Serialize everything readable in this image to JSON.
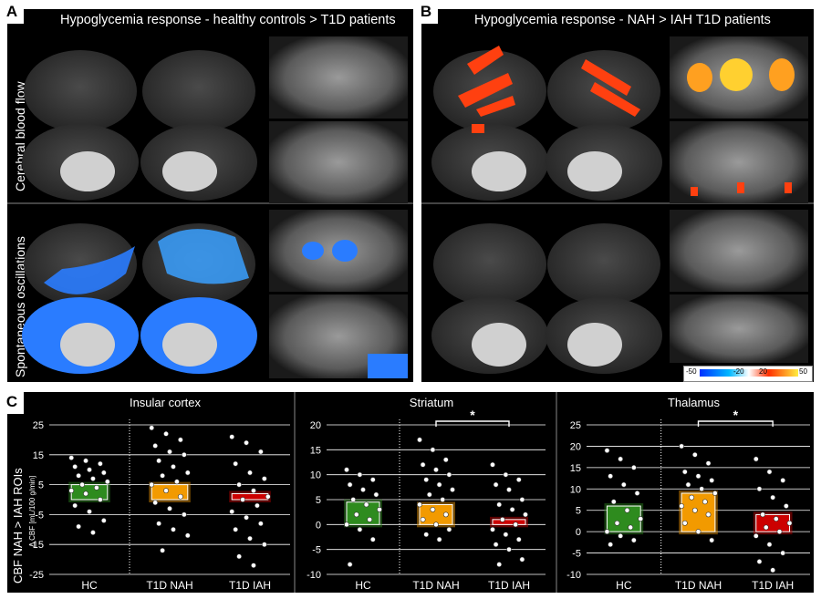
{
  "panel_a": {
    "letter": "A",
    "title": "Hypoglycemia response - healthy controls > T1D patients"
  },
  "panel_b": {
    "letter": "B",
    "title": "Hypoglycemia response - NAH > IAH T1D patients"
  },
  "panel_c": {
    "letter": "C"
  },
  "row_labels": {
    "top": "Cerebral blood flow",
    "bottom": "Spontaneous oscillations"
  },
  "colorbar": {
    "ticks": [
      "-50",
      "-20",
      "20",
      "50"
    ]
  },
  "colors": {
    "hc": "#2e8b1e",
    "nah": "#f29a00",
    "iah": "#cc0000",
    "neg": "#2a7cff",
    "pos": "#ff4010"
  },
  "chart_data": [
    {
      "type": "bar",
      "title": "Insular cortex",
      "ylabel": "CBF NAH > IAH ROIs",
      "ylabel_units": "Δ CBF [mL/100 g/min]",
      "categories": [
        "HC",
        "T1D NAH",
        "T1D IAH"
      ],
      "values": [
        5,
        5,
        2
      ],
      "ylim": [
        -25,
        25
      ],
      "yticks": [
        "25",
        "15",
        "5",
        "-5",
        "-15",
        "-25"
      ],
      "ytick_values": [
        25,
        15,
        5,
        -5,
        -15,
        -25
      ],
      "significance": null,
      "points": [
        [
          14,
          13,
          12,
          11,
          10,
          9,
          8,
          7,
          6,
          5,
          4,
          3,
          2,
          0,
          -2,
          -4,
          -7,
          -9,
          -11
        ],
        [
          24,
          22,
          20,
          18,
          16,
          15,
          13,
          11,
          9,
          8,
          6,
          5,
          3,
          1,
          -1,
          -3,
          -5,
          -8,
          -10,
          -12,
          -17
        ],
        [
          21,
          19,
          16,
          12,
          9,
          7,
          5,
          3,
          1,
          0,
          -2,
          -4,
          -6,
          -8,
          -10,
          -13,
          -15,
          -19,
          -22
        ]
      ]
    },
    {
      "type": "bar",
      "title": "Striatum",
      "categories": [
        "HC",
        "T1D NAH",
        "T1D IAH"
      ],
      "values": [
        4.5,
        4,
        1
      ],
      "ylim": [
        -10,
        20
      ],
      "yticks": [
        "20",
        "15",
        "10",
        "5",
        "0",
        "-5",
        "-10"
      ],
      "ytick_values": [
        20,
        15,
        10,
        5,
        0,
        -5,
        -10
      ],
      "significance": {
        "from": 1,
        "to": 2,
        "label": "*"
      },
      "points": [
        [
          11,
          10,
          9,
          8,
          7,
          6,
          5,
          4,
          3,
          2,
          1,
          0,
          -1,
          -3,
          -8
        ],
        [
          17,
          15,
          13,
          12,
          11,
          10,
          9,
          8,
          7,
          6,
          5,
          4,
          3,
          2,
          1,
          0,
          -1,
          -2,
          -3
        ],
        [
          12,
          10,
          9,
          8,
          7,
          5,
          4,
          3,
          2,
          1,
          0,
          -1,
          -2,
          -3,
          -4,
          -5,
          -7,
          -8
        ]
      ]
    },
    {
      "type": "bar",
      "title": "Thalamus",
      "categories": [
        "HC",
        "T1D NAH",
        "T1D IAH"
      ],
      "values": [
        6,
        9,
        4
      ],
      "ylim": [
        -10,
        25
      ],
      "yticks": [
        "25",
        "20",
        "15",
        "10",
        "5",
        "0",
        "-5",
        "-10"
      ],
      "ytick_values": [
        25,
        20,
        15,
        10,
        5,
        0,
        -5,
        -10
      ],
      "significance": {
        "from": 1,
        "to": 2,
        "label": "*"
      },
      "points": [
        [
          19,
          17,
          15,
          13,
          11,
          9,
          7,
          5,
          3,
          2,
          1,
          0,
          -1,
          -2,
          -3
        ],
        [
          20,
          18,
          16,
          14,
          13,
          12,
          11,
          10,
          9,
          8,
          7,
          6,
          5,
          4,
          2,
          0,
          -2
        ],
        [
          17,
          14,
          12,
          10,
          8,
          6,
          4,
          3,
          2,
          1,
          0,
          -1,
          -3,
          -5,
          -7,
          -9
        ]
      ]
    }
  ]
}
